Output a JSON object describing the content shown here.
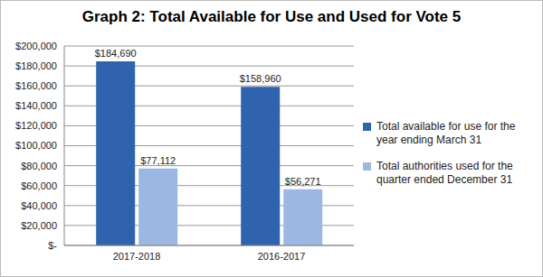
{
  "chart_data": {
    "type": "bar",
    "title": "Graph 2: Total Available for Use and Used for Vote 5",
    "categories": [
      "2017-2018",
      "2016-2017"
    ],
    "series": [
      {
        "name": "Total available for use for the year ending March 31",
        "color": "#2f63ad",
        "values": [
          184690,
          158960
        ],
        "value_labels": [
          "$184,690",
          "$158,960"
        ]
      },
      {
        "name": "Total authorities used for the quarter ended December 31",
        "color": "#9cb8e2",
        "values": [
          77112,
          56271
        ],
        "value_labels": [
          "$77,112",
          "$56,271"
        ]
      }
    ],
    "ylim": [
      0,
      200000
    ],
    "yticks": [
      {
        "value": 0,
        "label": "$-"
      },
      {
        "value": 20000,
        "label": "$20,000"
      },
      {
        "value": 40000,
        "label": "$40,000"
      },
      {
        "value": 60000,
        "label": "$60,000"
      },
      {
        "value": 80000,
        "label": "$80,000"
      },
      {
        "value": 100000,
        "label": "$100,000"
      },
      {
        "value": 120000,
        "label": "$120,000"
      },
      {
        "value": 140000,
        "label": "$140,000"
      },
      {
        "value": 160000,
        "label": "$160,000"
      },
      {
        "value": 180000,
        "label": "$180,000"
      },
      {
        "value": 200000,
        "label": "$200,000"
      }
    ],
    "grid": true,
    "legend": "right",
    "data_labels": true
  }
}
